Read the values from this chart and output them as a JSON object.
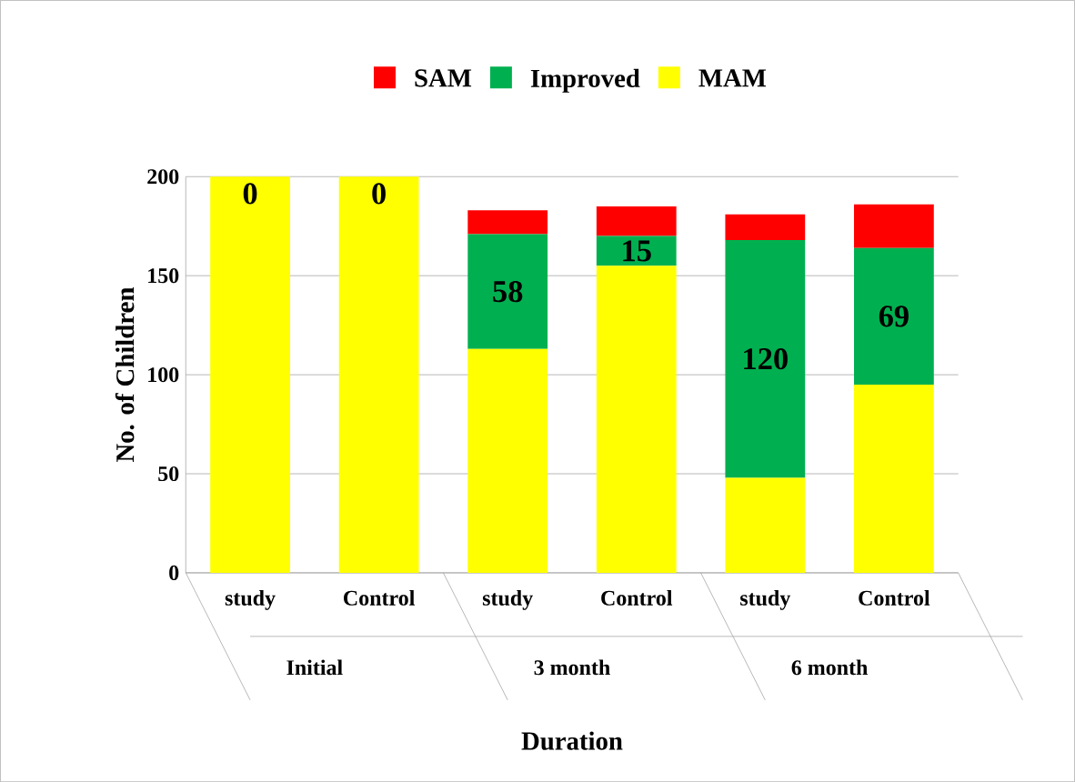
{
  "chart_data": {
    "type": "bar",
    "stacked": true,
    "xlabel": "Duration",
    "ylabel": "No. of Children",
    "categories": [
      "study",
      "Control",
      "study",
      "Control",
      "study",
      "Control"
    ],
    "annotations": [
      "Initial",
      "3 month",
      "6 month"
    ],
    "series": [
      {
        "name": "MAM",
        "color": "#ffff00",
        "values": [
          200,
          200,
          113,
          155,
          48,
          95
        ]
      },
      {
        "name": "Improved",
        "color": "#00b050",
        "values": [
          0,
          0,
          58,
          15,
          120,
          69
        ],
        "value_labels": [
          "0",
          "0",
          "58",
          "15",
          "120",
          "69"
        ]
      },
      {
        "name": "SAM",
        "color": "#ff0000",
        "values": [
          0,
          0,
          12,
          15,
          13,
          22
        ]
      }
    ],
    "ylim": [
      0,
      200
    ],
    "yticks": [
      0,
      50,
      100,
      150,
      200
    ],
    "grid": "y",
    "legend": "top"
  }
}
